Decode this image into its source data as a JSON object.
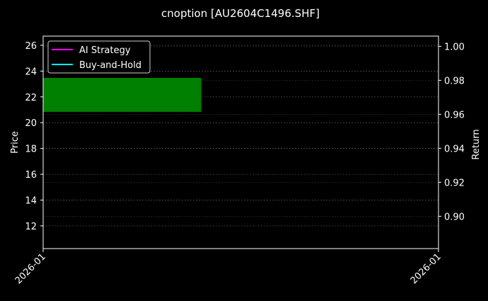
{
  "chart_data": {
    "type": "candlestick",
    "title": "cnoption [AU2604C1496.SHF]",
    "ylabel": "Price",
    "y2label": "Return",
    "ylim": [
      10.24,
      26.71
    ],
    "y2lim": [
      0.881,
      1.006
    ],
    "yticks": [
      12,
      14,
      16,
      18,
      20,
      22,
      24,
      26
    ],
    "y2ticks": [
      0.9,
      0.92,
      0.94,
      0.96,
      0.98,
      1.0
    ],
    "y2tick_labels": [
      "0.90",
      "0.92",
      "0.94",
      "0.96",
      "0.98",
      "1.00"
    ],
    "xtick_labels": [
      "2026-01",
      "2026-01"
    ],
    "grid": true,
    "legend": {
      "placement": "upper-left",
      "entries": [
        {
          "label": "AI Strategy",
          "color": "#ff00ff"
        },
        {
          "label": "Buy-and-Hold",
          "color": "#00ffff"
        }
      ]
    },
    "candles": [
      {
        "open": 20.84,
        "close": 23.47,
        "color": "#008000",
        "x_start_fraction": 0.0,
        "x_end_fraction": 0.4
      }
    ],
    "series": [
      {
        "name": "AI Strategy",
        "values": []
      },
      {
        "name": "Buy-and-Hold",
        "values": []
      }
    ]
  }
}
